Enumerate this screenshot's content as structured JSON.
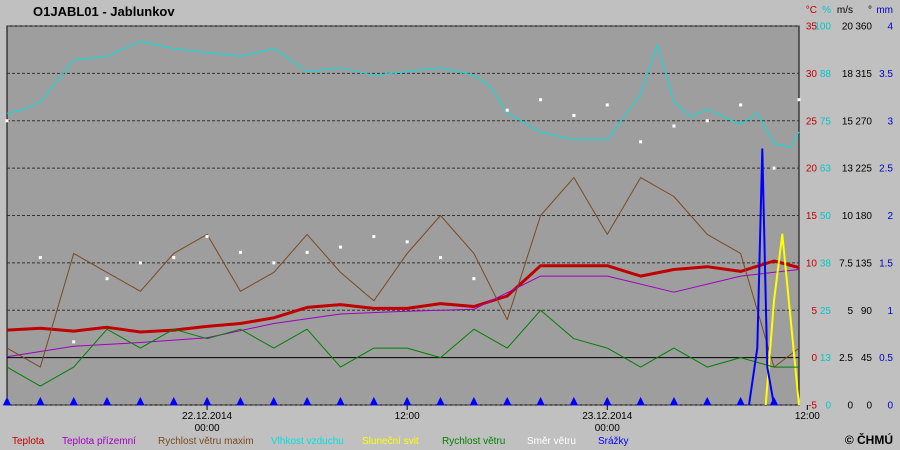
{
  "chart_data": {
    "type": "line",
    "title": "O1JABL01 - Jablunkov",
    "credit": "© ČHMÚ",
    "unit_headers": [
      "°C",
      "%",
      "m/s",
      "°",
      "mm"
    ],
    "axes": [
      {
        "name": "°C",
        "color": "#c00000",
        "ticks": [
          "35",
          "30",
          "25",
          "20",
          "15",
          "10",
          "5",
          "0",
          "-5"
        ]
      },
      {
        "name": "%",
        "color": "#00c8c8",
        "ticks": [
          "100",
          "88",
          "75",
          "63",
          "50",
          "38",
          "25",
          "13",
          "0"
        ]
      },
      {
        "name": "m/s",
        "color": "#000000",
        "ticks": [
          "20",
          "18",
          "15",
          "13",
          "10",
          "7.5",
          "5",
          "2.5",
          "0"
        ]
      },
      {
        "name": "°",
        "color": "#000000",
        "ticks": [
          "360",
          "315",
          "270",
          "225",
          "180",
          "135",
          "90",
          "45",
          "0"
        ]
      },
      {
        "name": "mm",
        "color": "#0000c8",
        "ticks": [
          "4",
          "3.5",
          "3",
          "2.5",
          "2",
          "1.5",
          "1",
          "0.5",
          "0"
        ]
      }
    ],
    "ylim": [
      -5,
      35
    ],
    "x_range_hours": [
      -12,
      35.5
    ],
    "x_ticks": [
      {
        "hours": 0,
        "line1": "22.12.2014",
        "line2": "00:00"
      },
      {
        "hours": 12,
        "line1": "12:00",
        "line2": ""
      },
      {
        "hours": 24,
        "line1": "23.12.2014",
        "line2": "00:00"
      },
      {
        "hours": 36,
        "line1": "12:00",
        "line2": ""
      }
    ],
    "legend": [
      {
        "label": "Teplota",
        "color": "#c00000"
      },
      {
        "label": "Teplota přízemní",
        "color": "#a000c0"
      },
      {
        "label": "Rychlost větru maxim",
        "color": "#7a4a20"
      },
      {
        "label": "Vlhkost vzduchu",
        "color": "#00e0e0"
      },
      {
        "label": "Sluneční svit",
        "color": "#ffff00"
      },
      {
        "label": "Rychlost větru",
        "color": "#008000"
      },
      {
        "label": "Směr větru",
        "color": "#ffffff"
      },
      {
        "label": "Srážky",
        "color": "#0000ff"
      }
    ],
    "series": [
      {
        "name": "Teplota",
        "unit": "°C",
        "color": "#c00000",
        "x": [
          -12,
          -10,
          -8,
          -6,
          -4,
          -2,
          0,
          2,
          4,
          6,
          8,
          10,
          12,
          14,
          16,
          18,
          20,
          22,
          24,
          26,
          28,
          30,
          32,
          34,
          35.5
        ],
        "values": [
          2.9,
          3.1,
          2.8,
          3.2,
          2.7,
          2.9,
          3.3,
          3.6,
          4.2,
          5.3,
          5.6,
          5.2,
          5.2,
          5.7,
          5.4,
          6.5,
          9.7,
          9.7,
          9.7,
          8.6,
          9.3,
          9.6,
          9.1,
          10.2,
          9.5
        ]
      },
      {
        "name": "Teplota přízemní",
        "unit": "°C",
        "color": "#a000c0",
        "x": [
          -12,
          -8,
          -4,
          0,
          4,
          8,
          12,
          16,
          20,
          24,
          28,
          32,
          35.5
        ],
        "values": [
          0.1,
          1.2,
          1.6,
          2.1,
          3.6,
          4.6,
          4.9,
          5.1,
          8.6,
          8.6,
          6.9,
          8.6,
          9.3
        ]
      },
      {
        "name": "Rychlost větru maxim",
        "unit": "m/s",
        "color": "#7a4a20",
        "x": [
          -12,
          -10,
          -8,
          -6,
          -4,
          -2,
          0,
          2,
          4,
          6,
          8,
          10,
          12,
          14,
          16,
          18,
          20,
          22,
          24,
          26,
          28,
          30,
          32,
          34,
          35.5
        ],
        "values": [
          3,
          2,
          8,
          7,
          6,
          8,
          9,
          6,
          7,
          9,
          7,
          5.5,
          8,
          10,
          8,
          4.5,
          10,
          12,
          9,
          12,
          11,
          9,
          8,
          2,
          3
        ]
      },
      {
        "name": "Vlhkost vzduchu",
        "unit": "%",
        "color": "#00e0e0",
        "x": [
          -12,
          -11,
          -10,
          -8,
          -6,
          -4,
          -2,
          0,
          2,
          4,
          6,
          8,
          10,
          12,
          14,
          16,
          17,
          18,
          20,
          22,
          24,
          26,
          27,
          28,
          29,
          30,
          32,
          33,
          34,
          35,
          35.5
        ],
        "values": [
          77,
          78,
          80,
          91,
          92,
          96,
          94,
          93,
          92,
          94,
          88,
          89,
          87,
          88,
          89,
          87,
          84,
          77,
          72,
          70,
          70,
          82,
          95,
          80,
          76,
          78,
          74,
          77,
          69,
          68,
          72
        ]
      },
      {
        "name": "Sluneční svit",
        "unit": "mm",
        "color": "#ffff00",
        "x": [
          33.5,
          34,
          34.5,
          35,
          35.5
        ],
        "values": [
          0,
          1.1,
          1.8,
          0.9,
          0
        ]
      },
      {
        "name": "Rychlost větru",
        "unit": "m/s",
        "color": "#008000",
        "x": [
          -12,
          -10,
          -8,
          -6,
          -4,
          -2,
          0,
          2,
          4,
          6,
          8,
          10,
          12,
          14,
          16,
          18,
          20,
          22,
          24,
          26,
          28,
          30,
          32,
          34,
          35.5
        ],
        "values": [
          2,
          1,
          2,
          4,
          3,
          4,
          3.5,
          4,
          3,
          4,
          2,
          3,
          3,
          2.5,
          4,
          3,
          5,
          3.5,
          3,
          2,
          3,
          2,
          2.5,
          2,
          2
        ]
      },
      {
        "name": "Směr větru",
        "unit": "°",
        "color": "#ffffff",
        "x": [
          -12,
          -10,
          -8,
          -6,
          -4,
          -2,
          0,
          2,
          4,
          6,
          8,
          10,
          12,
          14,
          16,
          18,
          20,
          22,
          24,
          26,
          28,
          30,
          32,
          34,
          35.5
        ],
        "values": [
          270,
          140,
          60,
          120,
          135,
          140,
          160,
          145,
          135,
          145,
          150,
          160,
          155,
          140,
          120,
          280,
          290,
          275,
          285,
          250,
          265,
          270,
          285,
          225,
          290
        ]
      },
      {
        "name": "Srážky",
        "unit": "mm",
        "color": "#0000ff",
        "x": [
          32.5,
          33,
          33.3,
          33.6,
          34
        ],
        "values": [
          0,
          0.6,
          2.7,
          0.4,
          0
        ]
      }
    ],
    "markers": {
      "label": "▲",
      "color": "#0000ff",
      "x": [
        -12,
        -10,
        -8,
        -6,
        -4,
        -2,
        0,
        2,
        4,
        6,
        8,
        10,
        12,
        14,
        16,
        18,
        20,
        22,
        24,
        26,
        28,
        30,
        32,
        34
      ]
    },
    "grid": true,
    "legend_placement": "bottom"
  }
}
